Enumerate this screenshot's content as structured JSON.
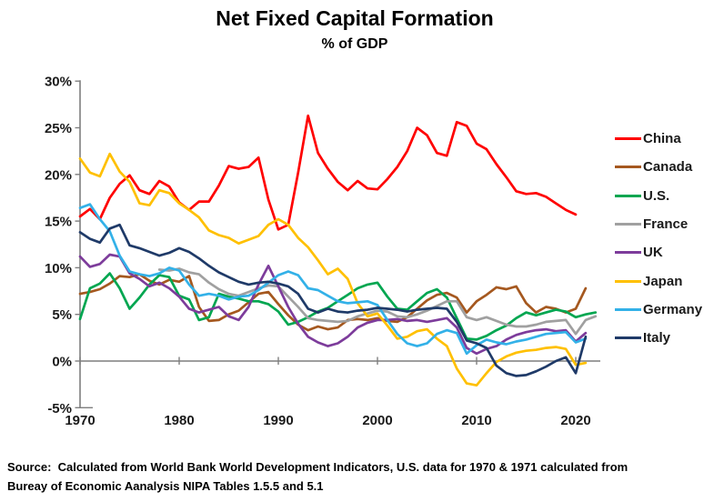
{
  "title": "Net Fixed Capital Formation",
  "subtitle": "% of GDP",
  "source": {
    "line1": "Source:  Calculated from World Bank World Development Indicators, U.S. data for 1970 & 1971 calculated from",
    "line2": "Bureay of Economic Aanalysis NIPA Tables 1.5.5 and 5.1"
  },
  "chart_data": {
    "type": "line",
    "title": "Net Fixed Capital Formation",
    "subtitle": "% of GDP",
    "grid": false,
    "legend_position": "right",
    "x_axis": {
      "ticks": [
        1970,
        1980,
        1990,
        2000,
        2010,
        2020
      ],
      "range": [
        1969.5,
        2022.5
      ]
    },
    "y_axis": {
      "tick_labels": [
        "30%",
        "25%",
        "20%",
        "15%",
        "10%",
        "5%",
        "0%",
        "-5%"
      ],
      "tick_values": [
        30,
        25,
        20,
        15,
        10,
        5,
        0,
        -5
      ],
      "range": [
        -5,
        30
      ],
      "unit": "percent of GDP"
    },
    "axis_color": "#7f7f7f",
    "series": [
      {
        "name": "China",
        "color": "#ff0000",
        "start_year": 1970,
        "values": [
          15.5,
          16.3,
          15.2,
          17.5,
          19.0,
          19.9,
          18.3,
          17.9,
          19.3,
          18.7,
          17.0,
          16.2,
          17.1,
          17.1,
          18.8,
          20.9,
          20.6,
          20.8,
          21.8,
          17.3,
          14.1,
          14.6,
          20.2,
          26.3,
          22.3,
          20.6,
          19.2,
          18.3,
          19.3,
          18.5,
          18.4,
          19.5,
          20.8,
          22.5,
          25.0,
          24.2,
          22.3,
          22.0,
          25.6,
          25.2,
          23.3,
          22.7,
          21.1,
          19.7,
          18.2,
          17.9,
          18.0,
          17.6,
          16.9,
          16.2,
          15.7
        ]
      },
      {
        "name": "Canada",
        "color": "#a5581f",
        "start_year": 1970,
        "values": [
          7.2,
          7.4,
          7.7,
          8.3,
          9.1,
          9.0,
          9.3,
          8.6,
          8.2,
          8.7,
          8.5,
          9.1,
          5.8,
          4.3,
          4.4,
          5.0,
          5.4,
          6.3,
          7.2,
          7.4,
          6.1,
          4.9,
          3.9,
          3.3,
          3.7,
          3.4,
          3.6,
          4.4,
          4.5,
          4.4,
          4.6,
          4.3,
          4.2,
          4.7,
          5.6,
          6.5,
          7.1,
          7.3,
          6.8,
          5.2,
          6.4,
          7.1,
          7.9,
          7.7,
          8.0,
          6.2,
          5.2,
          5.8,
          5.6,
          5.2,
          5.6,
          7.8
        ]
      },
      {
        "name": "U.S.",
        "color": "#00a650",
        "start_year": 1970,
        "values": [
          4.5,
          7.8,
          8.3,
          9.4,
          7.8,
          5.6,
          6.8,
          8.2,
          9.2,
          9.0,
          7.0,
          6.6,
          4.4,
          4.7,
          7.2,
          6.9,
          6.7,
          6.4,
          6.4,
          6.1,
          5.3,
          3.9,
          4.2,
          4.7,
          5.3,
          5.7,
          6.4,
          7.1,
          7.8,
          8.2,
          8.4,
          6.9,
          5.6,
          5.5,
          6.4,
          7.3,
          7.7,
          6.8,
          4.6,
          2.4,
          2.3,
          2.7,
          3.3,
          3.8,
          4.6,
          5.2,
          4.9,
          5.2,
          5.5,
          5.3,
          4.7,
          5.0,
          5.2
        ]
      },
      {
        "name": "France",
        "color": "#a0a0a0",
        "start_year": 1978,
        "values": [
          9.8,
          9.7,
          9.9,
          9.5,
          9.3,
          8.4,
          7.7,
          7.2,
          7.0,
          7.4,
          7.8,
          8.1,
          8.0,
          6.9,
          5.8,
          4.6,
          4.4,
          4.3,
          4.2,
          4.3,
          4.8,
          5.1,
          5.4,
          5.3,
          4.8,
          4.7,
          5.0,
          5.4,
          5.9,
          6.4,
          6.4,
          4.7,
          4.4,
          4.7,
          4.3,
          3.9,
          3.7,
          3.7,
          3.9,
          4.2,
          4.3,
          4.4,
          2.9,
          4.4,
          4.8
        ]
      },
      {
        "name": "UK",
        "color": "#7d3c9b",
        "start_year": 1970,
        "values": [
          11.2,
          10.1,
          10.4,
          11.4,
          11.2,
          9.4,
          8.8,
          8.0,
          8.4,
          7.8,
          6.9,
          5.6,
          5.2,
          5.5,
          5.8,
          4.8,
          4.4,
          5.8,
          8.2,
          10.2,
          8.0,
          5.8,
          4.0,
          2.6,
          2.0,
          1.6,
          1.9,
          2.6,
          3.6,
          4.1,
          4.4,
          4.4,
          4.5,
          4.3,
          4.4,
          4.2,
          4.4,
          4.6,
          3.6,
          1.4,
          0.8,
          1.3,
          1.6,
          2.3,
          2.8,
          3.1,
          3.3,
          3.4,
          3.2,
          3.3,
          2.1,
          3.0
        ]
      },
      {
        "name": "Japan",
        "color": "#ffc000",
        "start_year": 1970,
        "values": [
          21.7,
          20.2,
          19.8,
          22.2,
          20.3,
          19.2,
          16.9,
          16.7,
          18.3,
          18.0,
          16.9,
          16.2,
          15.4,
          14.0,
          13.5,
          13.2,
          12.6,
          13.0,
          13.4,
          14.6,
          15.2,
          14.6,
          13.2,
          12.2,
          10.8,
          9.3,
          9.9,
          8.8,
          6.2,
          4.8,
          5.1,
          3.8,
          2.4,
          2.6,
          3.2,
          3.4,
          2.4,
          1.6,
          -0.8,
          -2.4,
          -2.6,
          -1.3,
          -0.1,
          0.5,
          0.9,
          1.1,
          1.2,
          1.4,
          1.5,
          1.3,
          -0.4,
          -0.2
        ]
      },
      {
        "name": "Germany",
        "color": "#33b1e8",
        "start_year": 1970,
        "values": [
          16.4,
          16.8,
          15.2,
          13.9,
          11.3,
          9.6,
          9.3,
          9.1,
          9.4,
          10.0,
          9.7,
          8.2,
          7.0,
          7.2,
          7.0,
          6.6,
          6.9,
          7.0,
          7.6,
          8.4,
          9.2,
          9.6,
          9.2,
          7.8,
          7.6,
          7.0,
          6.4,
          6.2,
          6.3,
          6.4,
          6.0,
          4.4,
          2.9,
          1.9,
          1.6,
          1.9,
          2.9,
          3.3,
          3.0,
          0.8,
          1.7,
          2.3,
          2.0,
          1.8,
          2.1,
          2.3,
          2.6,
          2.9,
          3.0,
          3.1,
          2.0,
          2.4
        ]
      },
      {
        "name": "Italy",
        "color": "#1f3a68",
        "start_year": 1970,
        "values": [
          13.8,
          13.1,
          12.7,
          14.2,
          14.6,
          12.4,
          12.1,
          11.7,
          11.3,
          11.6,
          12.1,
          11.7,
          11.0,
          10.2,
          9.5,
          9.0,
          8.5,
          8.2,
          8.4,
          8.5,
          8.3,
          8.0,
          7.2,
          5.6,
          5.2,
          5.6,
          5.3,
          5.2,
          5.4,
          5.5,
          5.7,
          5.6,
          5.5,
          5.3,
          5.5,
          5.6,
          5.7,
          5.6,
          4.2,
          2.2,
          1.9,
          1.4,
          -0.5,
          -1.3,
          -1.6,
          -1.5,
          -1.1,
          -0.6,
          0.0,
          0.4,
          -1.3,
          2.6
        ]
      }
    ]
  }
}
